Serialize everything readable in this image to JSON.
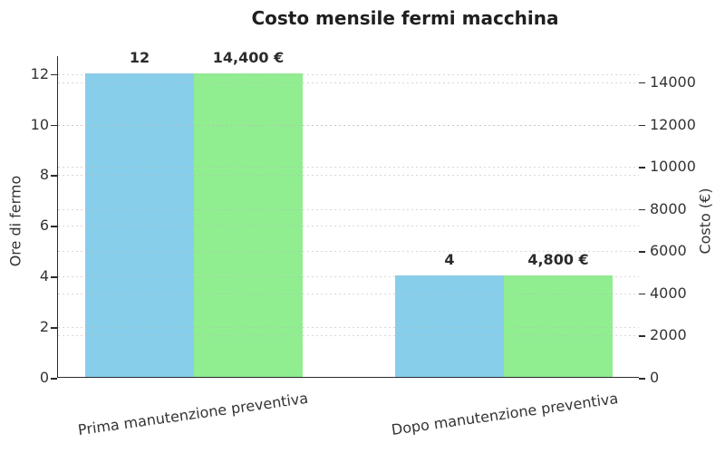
{
  "chart_data": {
    "type": "bar",
    "title": "Costo mensile fermi macchina",
    "categories": [
      "Prima manutenzione preventiva",
      "Dopo manutenzione preventiva"
    ],
    "series": [
      {
        "name": "Ore di fermo",
        "axis": "left",
        "values": [
          12,
          4
        ],
        "data_labels": [
          "12",
          "4"
        ],
        "color": "#87CEEB"
      },
      {
        "name": "Costo (€)",
        "axis": "right",
        "values": [
          14400,
          4800
        ],
        "data_labels": [
          "14,400 €",
          "4,800 €"
        ],
        "color": "#90EE90"
      }
    ],
    "left_axis": {
      "label": "Ore di fermo",
      "ticks": [
        0,
        2,
        4,
        6,
        8,
        10,
        12
      ],
      "range": [
        0,
        12.7
      ]
    },
    "right_axis": {
      "label": "Costo (€)",
      "ticks": [
        0,
        2000,
        4000,
        6000,
        8000,
        10000,
        12000,
        14000
      ],
      "range": [
        0,
        15240
      ]
    },
    "grid": "dashed-horizontal-above-bars",
    "legend": "none",
    "colors": {
      "grid": "#d9d9d9",
      "spine": "#2b2b2b",
      "text": "#333333",
      "title": "#1f1f1f",
      "background": "#ffffff"
    }
  }
}
